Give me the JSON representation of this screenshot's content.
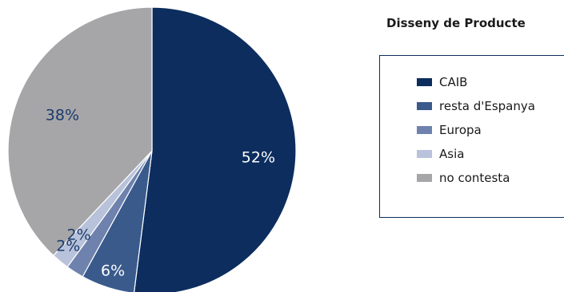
{
  "chart_data": {
    "type": "pie",
    "title": "Disseny de Producte",
    "legend_position": "right",
    "slices": [
      {
        "label": "CAIB",
        "value": 52,
        "display": "52%",
        "color": "#0c2d5e",
        "text_color": "#ffffff"
      },
      {
        "label": "resta d'Espanya",
        "value": 6,
        "display": "6%",
        "color": "#3a5a8c",
        "text_color": "#ffffff"
      },
      {
        "label": "Europa",
        "value": 2,
        "display": "2%",
        "color": "#6e82ad",
        "text_color": "#1b3a6b"
      },
      {
        "label": "Asia",
        "value": 2,
        "display": "2%",
        "color": "#b8c2da",
        "text_color": "#1b3a6b"
      },
      {
        "label": "no contesta",
        "value": 38,
        "display": "38%",
        "color": "#a6a6a8",
        "text_color": "#1b3a6b"
      }
    ]
  }
}
